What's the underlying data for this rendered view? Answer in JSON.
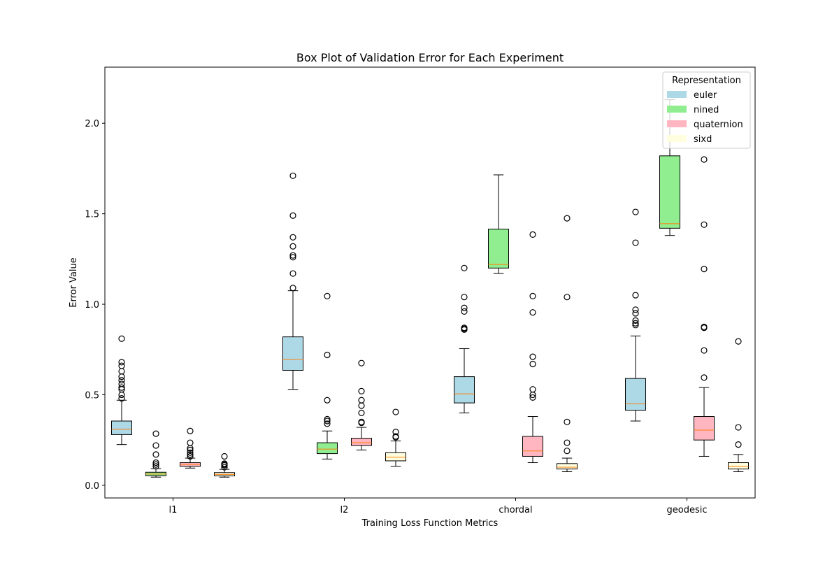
{
  "chart_data": {
    "type": "box",
    "title": "Box Plot of Validation Error for Each Experiment",
    "xlabel": "Training Loss Function Metrics",
    "ylabel": "Error Value",
    "ylim": [
      -0.07,
      2.31
    ],
    "yticks": [
      0.0,
      0.5,
      1.0,
      1.5,
      2.0
    ],
    "ytick_labels": [
      "0.0",
      "0.5",
      "1.0",
      "1.5",
      "2.0"
    ],
    "categories": [
      "l1",
      "l2",
      "chordal",
      "geodesic"
    ],
    "grid": false,
    "legend": {
      "title": "Representation",
      "position": "top-right",
      "entries": [
        {
          "label": "euler",
          "color": "#add8e6"
        },
        {
          "label": "nined",
          "color": "#90ee90"
        },
        {
          "label": "quaternion",
          "color": "#ffb6c1"
        },
        {
          "label": "sixd",
          "color": "#ffffe0"
        }
      ]
    },
    "median_color": "#ff7f0e",
    "series": [
      {
        "name": "euler",
        "color": "#add8e6",
        "boxes": [
          {
            "whislo": 0.225,
            "q1": 0.28,
            "med": 0.31,
            "q3": 0.355,
            "whishi": 0.47,
            "fliers": [
              0.81,
              0.68,
              0.66,
              0.63,
              0.6,
              0.58,
              0.56,
              0.54,
              0.53,
              0.5,
              0.48
            ]
          },
          {
            "whislo": 0.53,
            "q1": 0.635,
            "med": 0.695,
            "q3": 0.82,
            "whishi": 1.075,
            "fliers": [
              1.71,
              1.49,
              1.37,
              1.32,
              1.27,
              1.26,
              1.17,
              1.09
            ]
          },
          {
            "whislo": 0.4,
            "q1": 0.455,
            "med": 0.505,
            "q3": 0.6,
            "whishi": 0.755,
            "fliers": [
              1.2,
              1.04,
              0.98,
              0.96,
              0.87,
              0.865,
              0.86
            ]
          },
          {
            "whislo": 0.355,
            "q1": 0.415,
            "med": 0.45,
            "q3": 0.59,
            "whishi": 0.825,
            "fliers": [
              1.51,
              1.34,
              1.05,
              0.97,
              0.95,
              0.91,
              0.895,
              0.885
            ]
          }
        ]
      },
      {
        "name": "nined",
        "color": "#90ee90",
        "boxes": [
          {
            "whislo": 0.045,
            "q1": 0.053,
            "med": 0.062,
            "q3": 0.072,
            "whishi": 0.092,
            "fliers": [
              0.285,
              0.22,
              0.17,
              0.125,
              0.115,
              0.105
            ]
          },
          {
            "whislo": 0.145,
            "q1": 0.175,
            "med": 0.2,
            "q3": 0.235,
            "whishi": 0.3,
            "fliers": [
              1.045,
              0.72,
              0.47,
              0.365,
              0.355,
              0.34
            ]
          },
          {
            "whislo": 1.17,
            "q1": 1.2,
            "med": 1.22,
            "q3": 1.415,
            "whishi": 1.715,
            "fliers": []
          },
          {
            "whislo": 1.38,
            "q1": 1.42,
            "med": 1.445,
            "q3": 1.82,
            "whishi": 2.13,
            "fliers": []
          }
        ]
      },
      {
        "name": "quaternion",
        "color": "#ffb6c1",
        "boxes": [
          {
            "whislo": 0.095,
            "q1": 0.105,
            "med": 0.115,
            "q3": 0.125,
            "whishi": 0.15,
            "fliers": [
              0.3,
              0.235,
              0.205,
              0.195,
              0.18,
              0.17,
              0.16
            ]
          },
          {
            "whislo": 0.195,
            "q1": 0.22,
            "med": 0.235,
            "q3": 0.26,
            "whishi": 0.32,
            "fliers": [
              0.675,
              0.52,
              0.47,
              0.44,
              0.4,
              0.35,
              0.345
            ]
          },
          {
            "whislo": 0.125,
            "q1": 0.16,
            "med": 0.19,
            "q3": 0.27,
            "whishi": 0.38,
            "fliers": [
              1.385,
              1.045,
              0.955,
              0.71,
              0.67,
              0.53,
              0.5,
              0.485
            ]
          },
          {
            "whislo": 0.16,
            "q1": 0.25,
            "med": 0.305,
            "q3": 0.38,
            "whishi": 0.54,
            "fliers": [
              1.8,
              1.44,
              1.195,
              0.875,
              0.87,
              0.745,
              0.595
            ]
          }
        ]
      },
      {
        "name": "sixd",
        "color": "#ffffe0",
        "boxes": [
          {
            "whislo": 0.045,
            "q1": 0.052,
            "med": 0.06,
            "q3": 0.07,
            "whishi": 0.088,
            "fliers": [
              0.16,
              0.12,
              0.115,
              0.11,
              0.1
            ]
          },
          {
            "whislo": 0.105,
            "q1": 0.135,
            "med": 0.155,
            "q3": 0.18,
            "whishi": 0.245,
            "fliers": [
              0.405,
              0.295,
              0.27,
              0.265
            ]
          },
          {
            "whislo": 0.075,
            "q1": 0.09,
            "med": 0.1,
            "q3": 0.12,
            "whishi": 0.15,
            "fliers": [
              1.475,
              1.04,
              0.35,
              0.235,
              0.19
            ]
          },
          {
            "whislo": 0.075,
            "q1": 0.09,
            "med": 0.105,
            "q3": 0.125,
            "whishi": 0.17,
            "fliers": [
              0.795,
              0.32,
              0.225
            ]
          }
        ]
      }
    ]
  }
}
